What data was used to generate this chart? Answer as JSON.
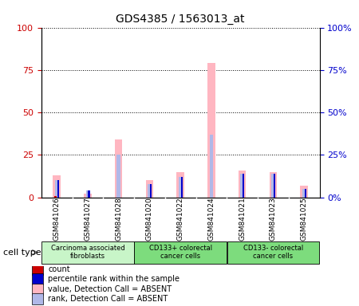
{
  "title": "GDS4385 / 1563013_at",
  "samples": [
    "GSM841026",
    "GSM841027",
    "GSM841028",
    "GSM841020",
    "GSM841022",
    "GSM841024",
    "GSM841021",
    "GSM841023",
    "GSM841025"
  ],
  "pink_bars": [
    13,
    2,
    34,
    10,
    15,
    79,
    16,
    15,
    7
  ],
  "lavender_bars": [
    10,
    4,
    25,
    8,
    12,
    37,
    14,
    14,
    5
  ],
  "red_bars": [
    1,
    0,
    0,
    0,
    0,
    0,
    0,
    0,
    0
  ],
  "blue_bars": [
    10,
    4,
    0,
    8,
    12,
    0,
    14,
    14,
    5
  ],
  "groups": [
    {
      "label": "Carcinoma associated\nfibroblasts",
      "start": 0,
      "end": 3,
      "color": "#c8f5c8"
    },
    {
      "label": "CD133+ colorectal\ncancer cells",
      "start": 3,
      "end": 6,
      "color": "#7ddc7d"
    },
    {
      "label": "CD133- colorectal\ncancer cells",
      "start": 6,
      "end": 9,
      "color": "#7ddc7d"
    }
  ],
  "ylim": [
    0,
    100
  ],
  "yticks": [
    0,
    25,
    50,
    75,
    100
  ],
  "left_tick_color": "#cc0000",
  "right_tick_color": "#0000cc",
  "gray_bg": "#d3d3d3",
  "plot_bg": "#ffffff",
  "bar_pink": "#ffb6c1",
  "bar_lavender": "#b0b8e8",
  "bar_red": "#cc0000",
  "bar_blue": "#0000cc",
  "legend_items": [
    {
      "color": "#cc0000",
      "label": "count",
      "square": true
    },
    {
      "color": "#0000cc",
      "label": "percentile rank within the sample",
      "square": true
    },
    {
      "color": "#ffb6c1",
      "label": "value, Detection Call = ABSENT",
      "square": true
    },
    {
      "color": "#b0b8e8",
      "label": "rank, Detection Call = ABSENT",
      "square": true
    }
  ],
  "cell_type_label": "cell type",
  "pink_bar_width": 0.25,
  "lavender_bar_width": 0.12,
  "red_bar_width": 0.06,
  "blue_bar_width": 0.06
}
